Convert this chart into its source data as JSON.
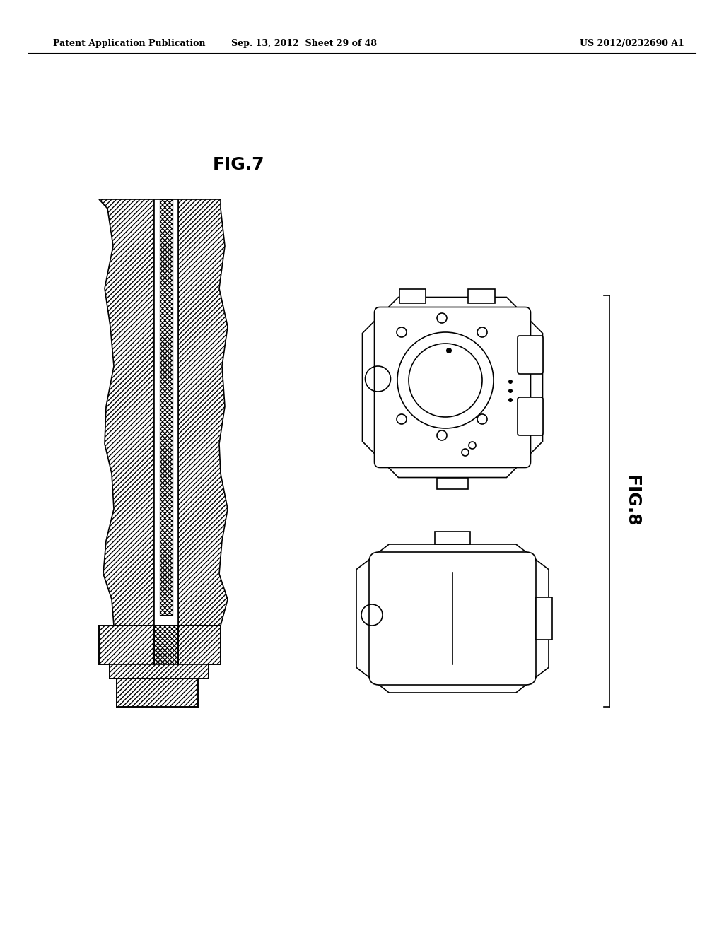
{
  "bg_color": "#ffffff",
  "line_color": "#000000",
  "hatch_color": "#000000",
  "header_left": "Patent Application Publication",
  "header_mid": "Sep. 13, 2012  Sheet 29 of 48",
  "header_right": "US 2012/0232690 A1",
  "fig7_label": "FIG.7",
  "fig8_label": "FIG.8",
  "header_fontsize": 9,
  "label_fontsize": 16
}
